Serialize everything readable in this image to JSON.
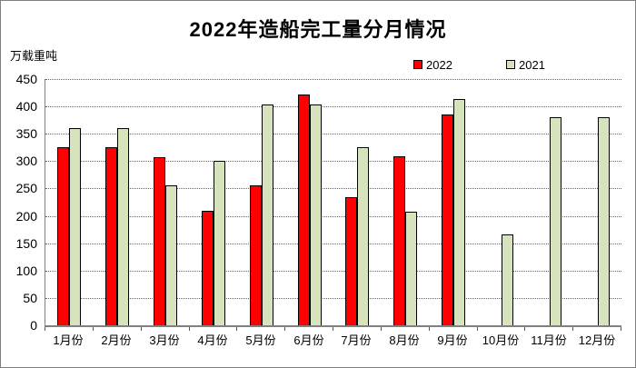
{
  "title": "2022年造船完工量分月情况",
  "y_axis_unit": "万载重吨",
  "colors": {
    "series_2022": "#FF0000",
    "series_2021": "#D6E3BC",
    "bar_border": "#000000",
    "gridline": "#666666",
    "axis": "#808080",
    "frame_border": "#808080",
    "background": "#FFFFFF"
  },
  "chart_data": {
    "type": "bar",
    "title": "2022年造船完工量分月情况",
    "ylabel": "万载重吨",
    "xlabel": "",
    "categories": [
      "1月份",
      "2月份",
      "3月份",
      "4月份",
      "5月份",
      "6月份",
      "7月份",
      "8月份",
      "9月份",
      "10月份",
      "11月份",
      "12月份"
    ],
    "series": [
      {
        "name": "2022",
        "color": "#FF0000",
        "values": [
          326,
          326,
          308,
          210,
          256,
          421,
          234,
          309,
          386,
          null,
          null,
          null
        ]
      },
      {
        "name": "2021",
        "color": "#D6E3BC",
        "values": [
          361,
          361,
          255,
          301,
          404,
          404,
          326,
          207,
          414,
          166,
          381,
          381
        ]
      }
    ],
    "ylim": [
      0,
      450
    ],
    "yticks": [
      0,
      50,
      100,
      150,
      200,
      250,
      300,
      350,
      400,
      450
    ],
    "grid": true,
    "gridline_style": "dotted",
    "legend_position": "top-right"
  }
}
